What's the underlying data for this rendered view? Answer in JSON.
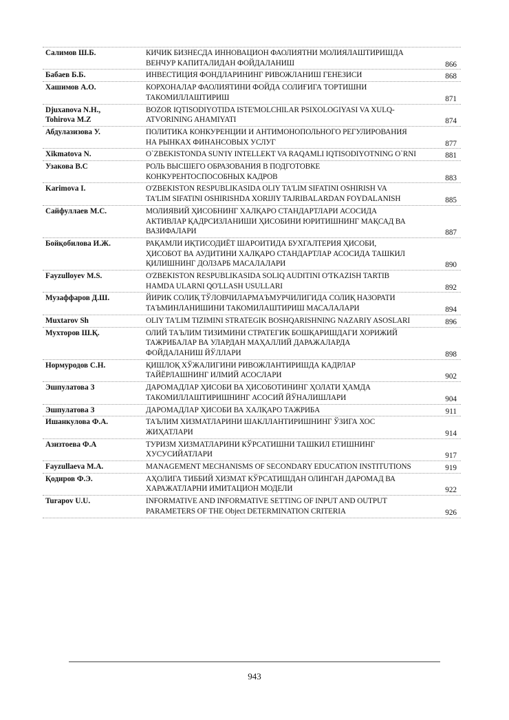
{
  "toc": [
    {
      "author": "Салимов Ш.Б.",
      "title": "КИЧИК БИЗНЕСДА ИННОВАЦИОН ФАОЛИЯТНИ МОЛИЯЛАШТИРИШДА\nВЕНЧУР КАПИТАЛИДАН ФОЙДАЛАНИШ",
      "page": "866"
    },
    {
      "author": "Бабаев Б.Б.",
      "title": "ИНВЕСТИЦИЯ ФОНДЛАРИНИНГ  РИВОЖЛАНИШ ГЕНЕЗИСИ",
      "page": "868"
    },
    {
      "author": "Хашимов А.О.",
      "title": "КОРХОНАЛАР ФАОЛИЯТИНИ ФОЙДА СОЛИҒИГА ТОРТИШНИ\nТАКОМИЛЛАШТИРИШ",
      "page": "871"
    },
    {
      "author": "Djuxanova N.H.,\nTohirova M.Z",
      "title": "BOZOR IQTISODIYOTIDA ISTE'MOLCHILAR PSIXOLOGIYASI VA XULQ-\nATVORINING AHAMIYATI",
      "page": "874"
    },
    {
      "author": "Абдулазизова У.",
      "title": "ПОЛИТИКА КОНКУРЕНЦИИ И АНТИМОНОПОЛЬНОГО РЕГУЛИРОВАНИЯ\nНА РЫНКАХ ФИНАНСОВЫХ УСЛУГ",
      "page": "877"
    },
    {
      "author": "Xikmatova N.",
      "title": "O`ZBEKISTONDA SUN'IY INTELLEKT VA RAQAMLI IQTISODIYOTNING O`RNI",
      "page": "881"
    },
    {
      "author": "Узакова В.С",
      "title": "РОЛЬ ВЫСШЕГО ОБРАЗОВАНИЯ В ПОДГОТОВКЕ\nКОНКУРЕНТОСПОСОБНЫХ КАДРОВ",
      "page": "883"
    },
    {
      "author": "Karimova I.",
      "title": "O'ZBEKISTON RESPUBLIKASIDA OLIY TA'LIM SIFATINI OSHIRISH VA\nTA'LIM SIFATINI OSHIRISHDA XORIJIY TAJRIBALARDAN FOYDALANISH",
      "page": "885"
    },
    {
      "author": "Сайфуллаев М.С.",
      "title": "МОЛИЯВИЙ ҲИСОБНИНГ ХАЛҚАРО СТАНДАРТЛАРИ АСОСИДА\nАКТИВЛАР ҚАДРСИЗЛАНИШИ ҲИСОБИНИ ЮРИТИШНИНГ МАҚСАД ВА\nВАЗИФАЛАРИ",
      "page": "887"
    },
    {
      "author": "Бойқобилова И.Ж.",
      "title": "РАҚАМЛИ ИҚТИСОДИЁТ ШАРОИТИДА БУХГАЛТЕРИЯ ҲИСОБИ,\nҲИСОБОТ ВА АУДИТИНИ ХАЛҚАРО СТАНДАРТЛАР АСОСИДА ТАШКИЛ\nҚИЛИШНИНГ ДОЛЗАРБ МАСАЛАЛАРИ",
      "page": "890"
    },
    {
      "author": "Fayzulloyev M.S.",
      "title": "O'ZBEKISTON RESPUBLIKASIDA SOLIQ AUDITINI O'TKAZISH TARTIB\nHAMDA ULARNI QO'LLASH USULLARI",
      "page": "892"
    },
    {
      "author": "Музаффаров Д.Ш.",
      "title": "ЙИРИК СОЛИҚ ТЎЛОВЧИЛАРМАЪМУРЧИЛИГИДА СОЛИҚ НАЗОРАТИ\nТАЪМИНЛАНИШИНИ ТАКОМИЛАШТИРИШ МАСАЛАЛАРИ",
      "page": "894"
    },
    {
      "author": "Muxtarov Sh",
      "title": "OLIY TA'LIM TIZIMINI STRATEGIK BOSHQARISHNING NAZARIY ASOSLARI",
      "page": "896"
    },
    {
      "author": "Мухторов Ш.Қ.",
      "title": "ОЛИЙ ТАЪЛИМ ТИЗИМИНИ СТРАТЕГИК БОШҚАРИШДАГИ ХОРИЖИЙ\nТАЖРИБАЛАР ВА УЛАРДАН МАҲАЛЛИЙ  ДАРАЖАЛАРДА\nФОЙДАЛАНИШ ЙЎЛЛАРИ",
      "page": "898"
    },
    {
      "author": "Нормуродов С.Н.",
      "title": "ҚИШЛОҚ ХЎЖАЛИГИНИ РИВОЖЛАНТИРИШДА КАДРЛАР\nТАЙЁРЛАШНИНГ ИЛМИЙ АСОСЛАРИ",
      "page": "902"
    },
    {
      "author": "Эшпулатова З",
      "title": "ДАРОМАДЛАР ҲИСОБИ ВА ҲИСОБОТИНИНГ ҲОЛАТИ ҲАМДА\nТАКОМИЛЛАШТИРИШНИНГ АСОСИЙ ЙЎНАЛИШЛАРИ",
      "page": "904"
    },
    {
      "author": "Эшпулатова З",
      "title": "ДАРОМАДЛАР ҲИСОБИ ВА ХАЛҚАРО ТАЖРИБА",
      "page": "911"
    },
    {
      "author": "Ишанкулова Ф.А.",
      "title": "ТАЪЛИМ ХИЗМАТЛАРИНИ ШАКЛЛАНТИРИШНИНГ ЎЗИГА ХОС\nЖИҲАТЛАРИ",
      "page": "914"
    },
    {
      "author": "Азизтоева Ф.А",
      "title": "ТУРИЗМ ХИЗМАТЛАРИНИ КЎРСАТИШНИ ТАШКИЛ ЕТИШНИНГ\nХУСУСИЙАТЛАРИ",
      "page": "917"
    },
    {
      "author": "Fayzullaeva M.A.",
      "title": "MANAGEMENT MECHANISMS OF SECONDARY EDUCATION INSTITUTIONS",
      "page": "919"
    },
    {
      "author": "Қодиров Ф.Э.",
      "title": "АҲОЛИГА ТИББИЙ ХИЗМАТ КЎРСАТИШДАН  ОЛИНГАН ДАРОМАД ВА\nХАРАЖАТЛАРНИ   ИМИТАЦИОН   МОДЕЛИ",
      "page": "922"
    },
    {
      "author": "Turapov U.U.",
      "title": "INFORMATIVE AND INFORMATIVE SETTING OF INPUT AND OUTPUT\nPARAMETERS OF THE Object DETERMINATION CRITERIA",
      "page": "926"
    }
  ],
  "footer": {
    "page_number": "943"
  }
}
